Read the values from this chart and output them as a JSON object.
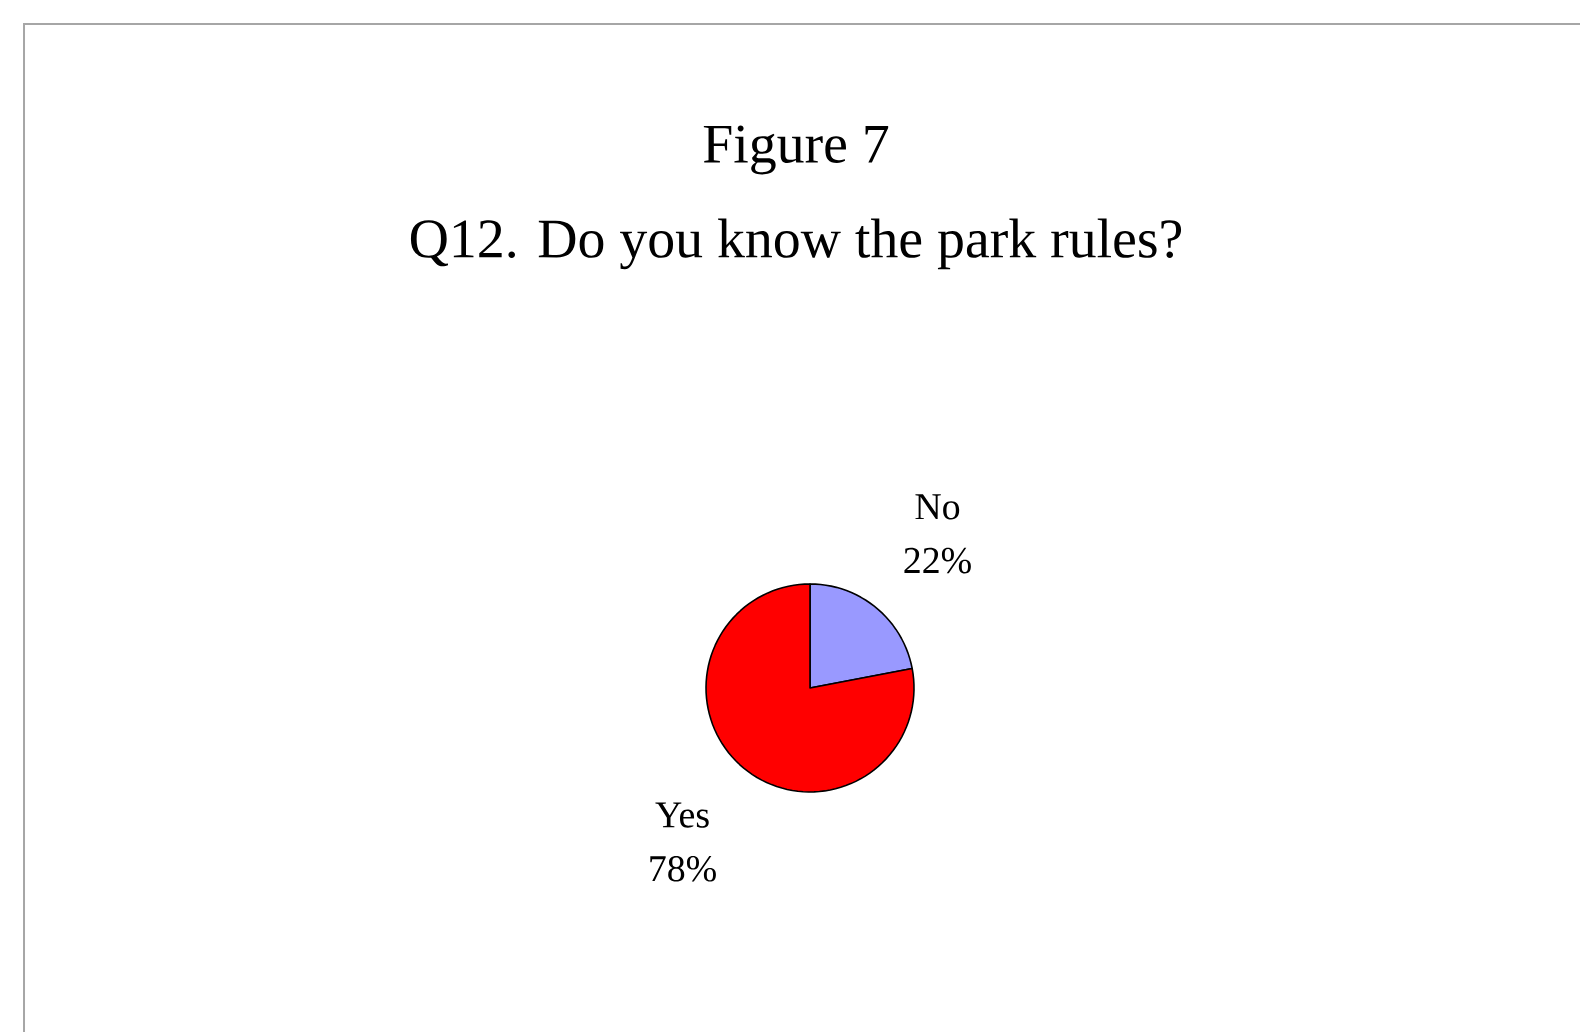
{
  "chart_data": {
    "type": "pie",
    "title": "Figure 7",
    "subtitle": "Q12. Do you know the park rules?",
    "categories": [
      "Yes",
      "No"
    ],
    "values": [
      78,
      22
    ],
    "colors": [
      "#ff0000",
      "#9999ff"
    ],
    "value_labels": [
      "78%",
      "22%"
    ]
  }
}
